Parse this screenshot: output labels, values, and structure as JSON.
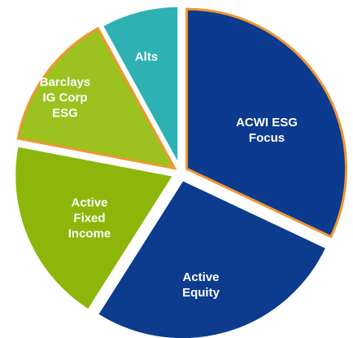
{
  "chart_data": {
    "type": "pie",
    "categories": [
      "ACWI ESG Focus",
      "Active Equity",
      "Active Fixed Income",
      "Barclays IG Corp ESG",
      "Alts"
    ],
    "values": [
      32,
      27,
      19,
      14,
      8
    ],
    "colors": [
      "#0c3a8e",
      "#0d3c8f",
      "#8cb70a",
      "#9bc21f",
      "#2db1b3"
    ],
    "edgecolors": [
      "#ef9630",
      "#ffffff",
      "#ffffff",
      "#ef9630",
      "#ffffff"
    ]
  }
}
